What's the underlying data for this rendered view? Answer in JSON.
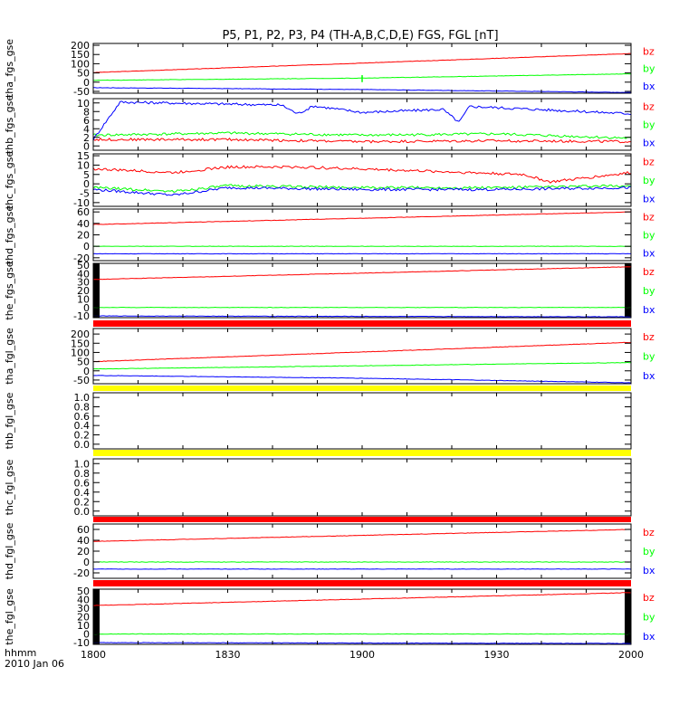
{
  "chart_data": {
    "type": "line",
    "title": "P5, P1, P2, P3, P4 (TH-A,B,C,D,E) FGS, FGL [nT]",
    "x_ticks": [
      "1800",
      "1830",
      "1900",
      "1930",
      "2000"
    ],
    "x_range_hhmm": [
      "1800",
      "2000"
    ],
    "x_axis_label": "hhmm",
    "x_axis_date": "2010 Jan 06",
    "panels": [
      {
        "ylabel": "tha_fgs_gse",
        "ylim": [
          -60,
          210
        ],
        "yticks": [
          -50,
          0,
          50,
          100,
          150,
          200
        ],
        "series": [
          {
            "name": "bz",
            "color": "#ff0000",
            "x": [
              0,
              1
            ],
            "y": [
              52,
              155
            ]
          },
          {
            "name": "by",
            "color": "#00ff00",
            "x": [
              0,
              0.5,
              1
            ],
            "y": [
              10,
              22,
              45
            ]
          },
          {
            "name": "bx",
            "color": "#0000ff",
            "x": [
              0,
              0.5,
              1
            ],
            "y": [
              -30,
              -40,
              -56
            ]
          }
        ],
        "spikes": [
          {
            "x": 0.5,
            "y": 38
          }
        ]
      },
      {
        "ylabel": "thb_fgs_gse",
        "ylim": [
          -1,
          11
        ],
        "yticks": [
          0,
          2,
          4,
          6,
          8,
          10
        ],
        "series": [
          {
            "name": "bz",
            "color": "#ff0000",
            "x": [
              0,
              0.25,
              0.5,
              0.75,
              1
            ],
            "y": [
              1.5,
              1.5,
              1.0,
              1.2,
              1.0
            ]
          },
          {
            "name": "by",
            "color": "#00ff00",
            "x": [
              0,
              0.25,
              0.5,
              0.75,
              1
            ],
            "y": [
              2.5,
              3.0,
              2.5,
              2.8,
              1.8
            ]
          },
          {
            "name": "bx",
            "color": "#0000ff",
            "x": [
              0,
              0.02,
              0.05,
              0.35,
              0.38,
              0.41,
              0.5,
              0.65,
              0.68,
              0.7,
              1
            ],
            "y": [
              1.5,
              5,
              10.2,
              9.5,
              7.5,
              9.3,
              7.8,
              8.5,
              5.5,
              9.2,
              7.5
            ]
          }
        ]
      },
      {
        "ylabel": "thc_fgs_gse",
        "ylim": [
          -12,
          16
        ],
        "yticks": [
          -10,
          -5,
          0,
          5,
          10,
          15
        ],
        "series": [
          {
            "name": "bz",
            "color": "#ff0000",
            "x": [
              0,
              0.15,
              0.25,
              0.38,
              0.6,
              0.8,
              0.85,
              1
            ],
            "y": [
              8,
              6,
              9,
              9,
              7,
              5,
              1,
              6
            ]
          },
          {
            "name": "by",
            "color": "#00ff00",
            "x": [
              0,
              0.15,
              0.25,
              0.5,
              0.75,
              1
            ],
            "y": [
              -2,
              -4,
              -1,
              -2,
              -2,
              -1
            ]
          },
          {
            "name": "bx",
            "color": "#0000ff",
            "x": [
              0,
              0.15,
              0.25,
              0.5,
              0.75,
              1
            ],
            "y": [
              -3,
              -6,
              -2,
              -3,
              -3,
              -2
            ]
          }
        ]
      },
      {
        "ylabel": "thd_fgs_gse",
        "ylim": [
          -25,
          65
        ],
        "yticks": [
          -20,
          0,
          20,
          40,
          60
        ],
        "series": [
          {
            "name": "bz",
            "color": "#ff0000",
            "x": [
              0,
              1
            ],
            "y": [
              38,
              60
            ]
          },
          {
            "name": "by",
            "color": "#00ff00",
            "x": [
              0,
              1
            ],
            "y": [
              0,
              0
            ]
          },
          {
            "name": "bx",
            "color": "#0000ff",
            "x": [
              0,
              1
            ],
            "y": [
              -13,
              -13
            ]
          }
        ]
      },
      {
        "ylabel": "the_fgs_gse",
        "ylim": [
          -12,
          52
        ],
        "yticks": [
          -10,
          0,
          10,
          20,
          30,
          40,
          50
        ],
        "bars": "black",
        "series": [
          {
            "name": "bz",
            "color": "#ff0000",
            "x": [
              0,
              1
            ],
            "y": [
              33,
              48
            ]
          },
          {
            "name": "by",
            "color": "#00ff00",
            "x": [
              0,
              1
            ],
            "y": [
              0,
              0
            ]
          },
          {
            "name": "bx",
            "color": "#0000ff",
            "x": [
              0,
              1
            ],
            "y": [
              -10,
              -11
            ]
          }
        ]
      },
      {
        "ylabel": "tha_fgl_gse",
        "ylim": [
          -70,
          230
        ],
        "yticks": [
          -50,
          0,
          50,
          100,
          150,
          200
        ],
        "series": [
          {
            "name": "bz",
            "color": "#ff0000",
            "x": [
              0,
              1
            ],
            "y": [
              50,
              155
            ]
          },
          {
            "name": "by",
            "color": "#00ff00",
            "x": [
              0,
              1
            ],
            "y": [
              10,
              45
            ]
          },
          {
            "name": "bx",
            "color": "#0000ff",
            "x": [
              0,
              0.5,
              1
            ],
            "y": [
              -25,
              -40,
              -65
            ]
          }
        ]
      },
      {
        "ylabel": "thb_fgl_gse",
        "ylim": [
          -0.1,
          1.1
        ],
        "yticks": [
          0.0,
          0.2,
          0.4,
          0.6,
          0.8,
          1.0
        ],
        "empty": true
      },
      {
        "ylabel": "thc_fgl_gse",
        "ylim": [
          -0.1,
          1.1
        ],
        "yticks": [
          0.0,
          0.2,
          0.4,
          0.6,
          0.8,
          1.0
        ],
        "empty": true
      },
      {
        "ylabel": "thd_fgl_gse",
        "ylim": [
          -30,
          70
        ],
        "yticks": [
          -20,
          0,
          20,
          40,
          60
        ],
        "series": [
          {
            "name": "bz",
            "color": "#ff0000",
            "x": [
              0,
              1
            ],
            "y": [
              38,
              60
            ]
          },
          {
            "name": "by",
            "color": "#00ff00",
            "x": [
              0,
              1
            ],
            "y": [
              0,
              0
            ]
          },
          {
            "name": "bx",
            "color": "#0000ff",
            "x": [
              0,
              1
            ],
            "y": [
              -13,
              -13
            ]
          }
        ]
      },
      {
        "ylabel": "the_fgl_gse",
        "ylim": [
          -12,
          52
        ],
        "yticks": [
          -10,
          0,
          10,
          20,
          30,
          40,
          50
        ],
        "bars": "black",
        "series": [
          {
            "name": "bz",
            "color": "#ff0000",
            "x": [
              0,
              1
            ],
            "y": [
              33,
              48
            ]
          },
          {
            "name": "by",
            "color": "#00ff00",
            "x": [
              0,
              1
            ],
            "y": [
              0,
              0
            ]
          },
          {
            "name": "bx",
            "color": "#0000ff",
            "x": [
              0,
              1
            ],
            "y": [
              -10,
              -11
            ]
          }
        ]
      }
    ],
    "separators": [
      {
        "after_panel": 4,
        "color": "#ff0000"
      },
      {
        "after_panel": 5,
        "color": "#ffff00"
      },
      {
        "after_panel": 6,
        "color": "#ffff00"
      },
      {
        "after_panel": 7,
        "color": "#ff0000"
      },
      {
        "after_panel": 8,
        "color": "#ff0000"
      }
    ]
  }
}
